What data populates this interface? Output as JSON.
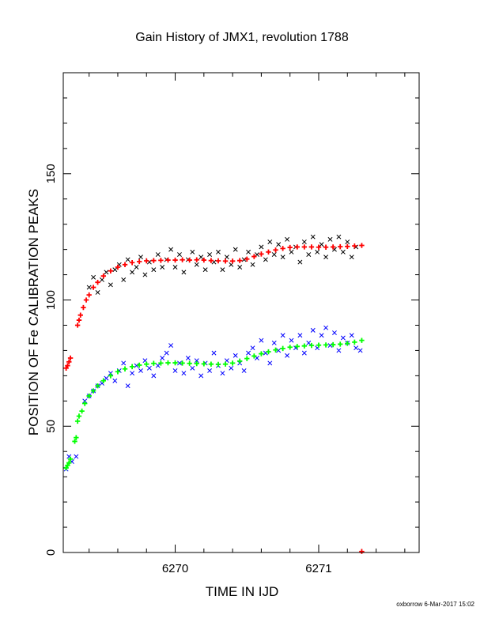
{
  "page": {
    "background": "#ffffff"
  },
  "chart_data": {
    "type": "scatter",
    "title": "Gain History of JMX1, revolution 1788",
    "xlabel": "TIME IN IJD",
    "ylabel": "POSITION OF Fe CALIBRATION PEAKS",
    "xlim": [
      6269.22,
      6271.7
    ],
    "ylim": [
      0,
      190
    ],
    "x_tick_labels": [
      {
        "value": 6270,
        "label": "6270"
      },
      {
        "value": 6271,
        "label": "6271"
      }
    ],
    "y_tick_labels": [
      {
        "value": 0,
        "label": "0"
      },
      {
        "value": 50,
        "label": "50"
      },
      {
        "value": 100,
        "label": "100"
      },
      {
        "value": 150,
        "label": "150"
      }
    ],
    "grid": false,
    "legend": "none",
    "credit": "oxborrow  6-Mar-2017 15:02",
    "series": [
      {
        "color": "#000000",
        "marker": "x",
        "points": [
          [
            6269.4,
            105
          ],
          [
            6269.43,
            109
          ],
          [
            6269.46,
            103
          ],
          [
            6269.49,
            108
          ],
          [
            6269.52,
            111
          ],
          [
            6269.55,
            106
          ],
          [
            6269.58,
            112
          ],
          [
            6269.61,
            114
          ],
          [
            6269.64,
            108
          ],
          [
            6269.67,
            116
          ],
          [
            6269.7,
            111
          ],
          [
            6269.73,
            113
          ],
          [
            6269.76,
            117
          ],
          [
            6269.79,
            110
          ],
          [
            6269.82,
            115
          ],
          [
            6269.85,
            112
          ],
          [
            6269.88,
            118
          ],
          [
            6269.91,
            113
          ],
          [
            6269.94,
            116
          ],
          [
            6269.97,
            120
          ],
          [
            6270.0,
            113
          ],
          [
            6270.03,
            118
          ],
          [
            6270.06,
            111
          ],
          [
            6270.09,
            116
          ],
          [
            6270.12,
            119
          ],
          [
            6270.15,
            114
          ],
          [
            6270.18,
            117
          ],
          [
            6270.21,
            112
          ],
          [
            6270.24,
            118
          ],
          [
            6270.27,
            115
          ],
          [
            6270.3,
            119
          ],
          [
            6270.33,
            112
          ],
          [
            6270.36,
            117
          ],
          [
            6270.39,
            114
          ],
          [
            6270.42,
            120
          ],
          [
            6270.45,
            113
          ],
          [
            6270.48,
            116
          ],
          [
            6270.51,
            119
          ],
          [
            6270.54,
            114
          ],
          [
            6270.57,
            118
          ],
          [
            6270.6,
            121
          ],
          [
            6270.63,
            116
          ],
          [
            6270.66,
            123
          ],
          [
            6270.69,
            118
          ],
          [
            6270.72,
            122
          ],
          [
            6270.75,
            117
          ],
          [
            6270.78,
            124
          ],
          [
            6270.81,
            119
          ],
          [
            6270.84,
            121
          ],
          [
            6270.87,
            115
          ],
          [
            6270.9,
            123
          ],
          [
            6270.93,
            118
          ],
          [
            6270.96,
            125
          ],
          [
            6270.99,
            119
          ],
          [
            6271.02,
            122
          ],
          [
            6271.05,
            117
          ],
          [
            6271.08,
            124
          ],
          [
            6271.11,
            120
          ],
          [
            6271.14,
            125
          ],
          [
            6271.17,
            119
          ],
          [
            6271.2,
            123
          ],
          [
            6271.23,
            117
          ],
          [
            6271.26,
            121
          ]
        ]
      },
      {
        "color": "#ff0000",
        "marker": "+",
        "points": [
          [
            6269.24,
            73
          ],
          [
            6269.25,
            74
          ],
          [
            6269.26,
            75.5
          ],
          [
            6269.27,
            77
          ],
          [
            6269.32,
            90
          ],
          [
            6269.33,
            92
          ],
          [
            6269.34,
            94
          ],
          [
            6269.36,
            97
          ],
          [
            6269.38,
            100
          ],
          [
            6269.4,
            102
          ],
          [
            6269.43,
            105
          ],
          [
            6269.46,
            107
          ],
          [
            6269.5,
            109.5
          ],
          [
            6269.55,
            111.5
          ],
          [
            6269.6,
            113
          ],
          [
            6269.65,
            114
          ],
          [
            6269.7,
            114.8
          ],
          [
            6269.75,
            115.2
          ],
          [
            6269.8,
            115.5
          ],
          [
            6269.85,
            115.6
          ],
          [
            6269.9,
            115.7
          ],
          [
            6269.95,
            115.8
          ],
          [
            6270.0,
            115.8
          ],
          [
            6270.05,
            115.9
          ],
          [
            6270.1,
            115.8
          ],
          [
            6270.15,
            115.9
          ],
          [
            6270.2,
            115.8
          ],
          [
            6270.25,
            115.6
          ],
          [
            6270.3,
            115.5
          ],
          [
            6270.35,
            115.4
          ],
          [
            6270.4,
            115.4
          ],
          [
            6270.45,
            115.6
          ],
          [
            6270.5,
            116.2
          ],
          [
            6270.55,
            117.2
          ],
          [
            6270.6,
            118.2
          ],
          [
            6270.65,
            119
          ],
          [
            6270.7,
            119.8
          ],
          [
            6270.75,
            120.4
          ],
          [
            6270.8,
            120.8
          ],
          [
            6270.85,
            121
          ],
          [
            6270.9,
            121
          ],
          [
            6270.95,
            121
          ],
          [
            6271.0,
            120.9
          ],
          [
            6271.05,
            120.9
          ],
          [
            6271.1,
            121
          ],
          [
            6271.15,
            121.1
          ],
          [
            6271.2,
            121.2
          ],
          [
            6271.25,
            121.4
          ],
          [
            6271.3,
            121.6
          ],
          [
            6271.3,
            0.4
          ]
        ]
      },
      {
        "color": "#0000ff",
        "marker": "x",
        "points": [
          [
            6269.24,
            33
          ],
          [
            6269.26,
            38
          ],
          [
            6269.28,
            36
          ],
          [
            6269.31,
            38
          ],
          [
            6269.37,
            60
          ],
          [
            6269.4,
            62
          ],
          [
            6269.43,
            64
          ],
          [
            6269.46,
            66
          ],
          [
            6269.49,
            67
          ],
          [
            6269.52,
            69
          ],
          [
            6269.55,
            71
          ],
          [
            6269.58,
            68
          ],
          [
            6269.61,
            72
          ],
          [
            6269.64,
            75
          ],
          [
            6269.67,
            66
          ],
          [
            6269.7,
            71
          ],
          [
            6269.73,
            74
          ],
          [
            6269.76,
            72
          ],
          [
            6269.79,
            76
          ],
          [
            6269.82,
            73
          ],
          [
            6269.85,
            70
          ],
          [
            6269.88,
            74
          ],
          [
            6269.91,
            77
          ],
          [
            6269.94,
            79
          ],
          [
            6269.97,
            82
          ],
          [
            6270.0,
            72
          ],
          [
            6270.03,
            75
          ],
          [
            6270.06,
            71
          ],
          [
            6270.09,
            77
          ],
          [
            6270.12,
            73
          ],
          [
            6270.15,
            76
          ],
          [
            6270.18,
            70
          ],
          [
            6270.21,
            75
          ],
          [
            6270.24,
            72
          ],
          [
            6270.27,
            79
          ],
          [
            6270.3,
            74
          ],
          [
            6270.33,
            71
          ],
          [
            6270.36,
            76
          ],
          [
            6270.39,
            73
          ],
          [
            6270.42,
            78
          ],
          [
            6270.45,
            75
          ],
          [
            6270.48,
            72
          ],
          [
            6270.51,
            79
          ],
          [
            6270.54,
            81
          ],
          [
            6270.57,
            77
          ],
          [
            6270.6,
            84
          ],
          [
            6270.63,
            79
          ],
          [
            6270.66,
            75
          ],
          [
            6270.69,
            83
          ],
          [
            6270.72,
            80
          ],
          [
            6270.75,
            86
          ],
          [
            6270.78,
            78
          ],
          [
            6270.81,
            84
          ],
          [
            6270.84,
            81
          ],
          [
            6270.87,
            86
          ],
          [
            6270.9,
            79
          ],
          [
            6270.93,
            83
          ],
          [
            6270.96,
            88
          ],
          [
            6270.99,
            81
          ],
          [
            6271.02,
            86
          ],
          [
            6271.05,
            89
          ],
          [
            6271.08,
            82
          ],
          [
            6271.11,
            87
          ],
          [
            6271.14,
            80
          ],
          [
            6271.17,
            85
          ],
          [
            6271.2,
            83
          ],
          [
            6271.23,
            86
          ],
          [
            6271.26,
            81
          ],
          [
            6271.29,
            80
          ]
        ]
      },
      {
        "color": "#00ff00",
        "marker": "+",
        "points": [
          [
            6269.24,
            33.5
          ],
          [
            6269.25,
            34.5
          ],
          [
            6269.26,
            35.5
          ],
          [
            6269.27,
            37
          ],
          [
            6269.3,
            44
          ],
          [
            6269.31,
            45.5
          ],
          [
            6269.32,
            52
          ],
          [
            6269.33,
            54
          ],
          [
            6269.35,
            56
          ],
          [
            6269.37,
            59
          ],
          [
            6269.4,
            62
          ],
          [
            6269.43,
            64
          ],
          [
            6269.46,
            66
          ],
          [
            6269.5,
            68
          ],
          [
            6269.55,
            70
          ],
          [
            6269.6,
            71.6
          ],
          [
            6269.65,
            72.7
          ],
          [
            6269.7,
            73.6
          ],
          [
            6269.75,
            74.2
          ],
          [
            6269.8,
            74.6
          ],
          [
            6269.85,
            74.9
          ],
          [
            6269.9,
            75
          ],
          [
            6269.95,
            75.1
          ],
          [
            6270.0,
            75.1
          ],
          [
            6270.05,
            75
          ],
          [
            6270.1,
            74.9
          ],
          [
            6270.15,
            74.8
          ],
          [
            6270.2,
            74.7
          ],
          [
            6270.25,
            74.6
          ],
          [
            6270.3,
            74.5
          ],
          [
            6270.35,
            74.6
          ],
          [
            6270.4,
            75
          ],
          [
            6270.45,
            75.8
          ],
          [
            6270.5,
            76.8
          ],
          [
            6270.55,
            77.8
          ],
          [
            6270.6,
            78.7
          ],
          [
            6270.65,
            79.5
          ],
          [
            6270.7,
            80.2
          ],
          [
            6270.75,
            80.8
          ],
          [
            6270.8,
            81.3
          ],
          [
            6270.85,
            81.6
          ],
          [
            6270.9,
            81.8
          ],
          [
            6270.95,
            82
          ],
          [
            6271.0,
            82.1
          ],
          [
            6271.05,
            82.2
          ],
          [
            6271.1,
            82.3
          ],
          [
            6271.15,
            82.5
          ],
          [
            6271.2,
            82.8
          ],
          [
            6271.25,
            83.3
          ],
          [
            6271.3,
            84
          ]
        ]
      }
    ]
  }
}
